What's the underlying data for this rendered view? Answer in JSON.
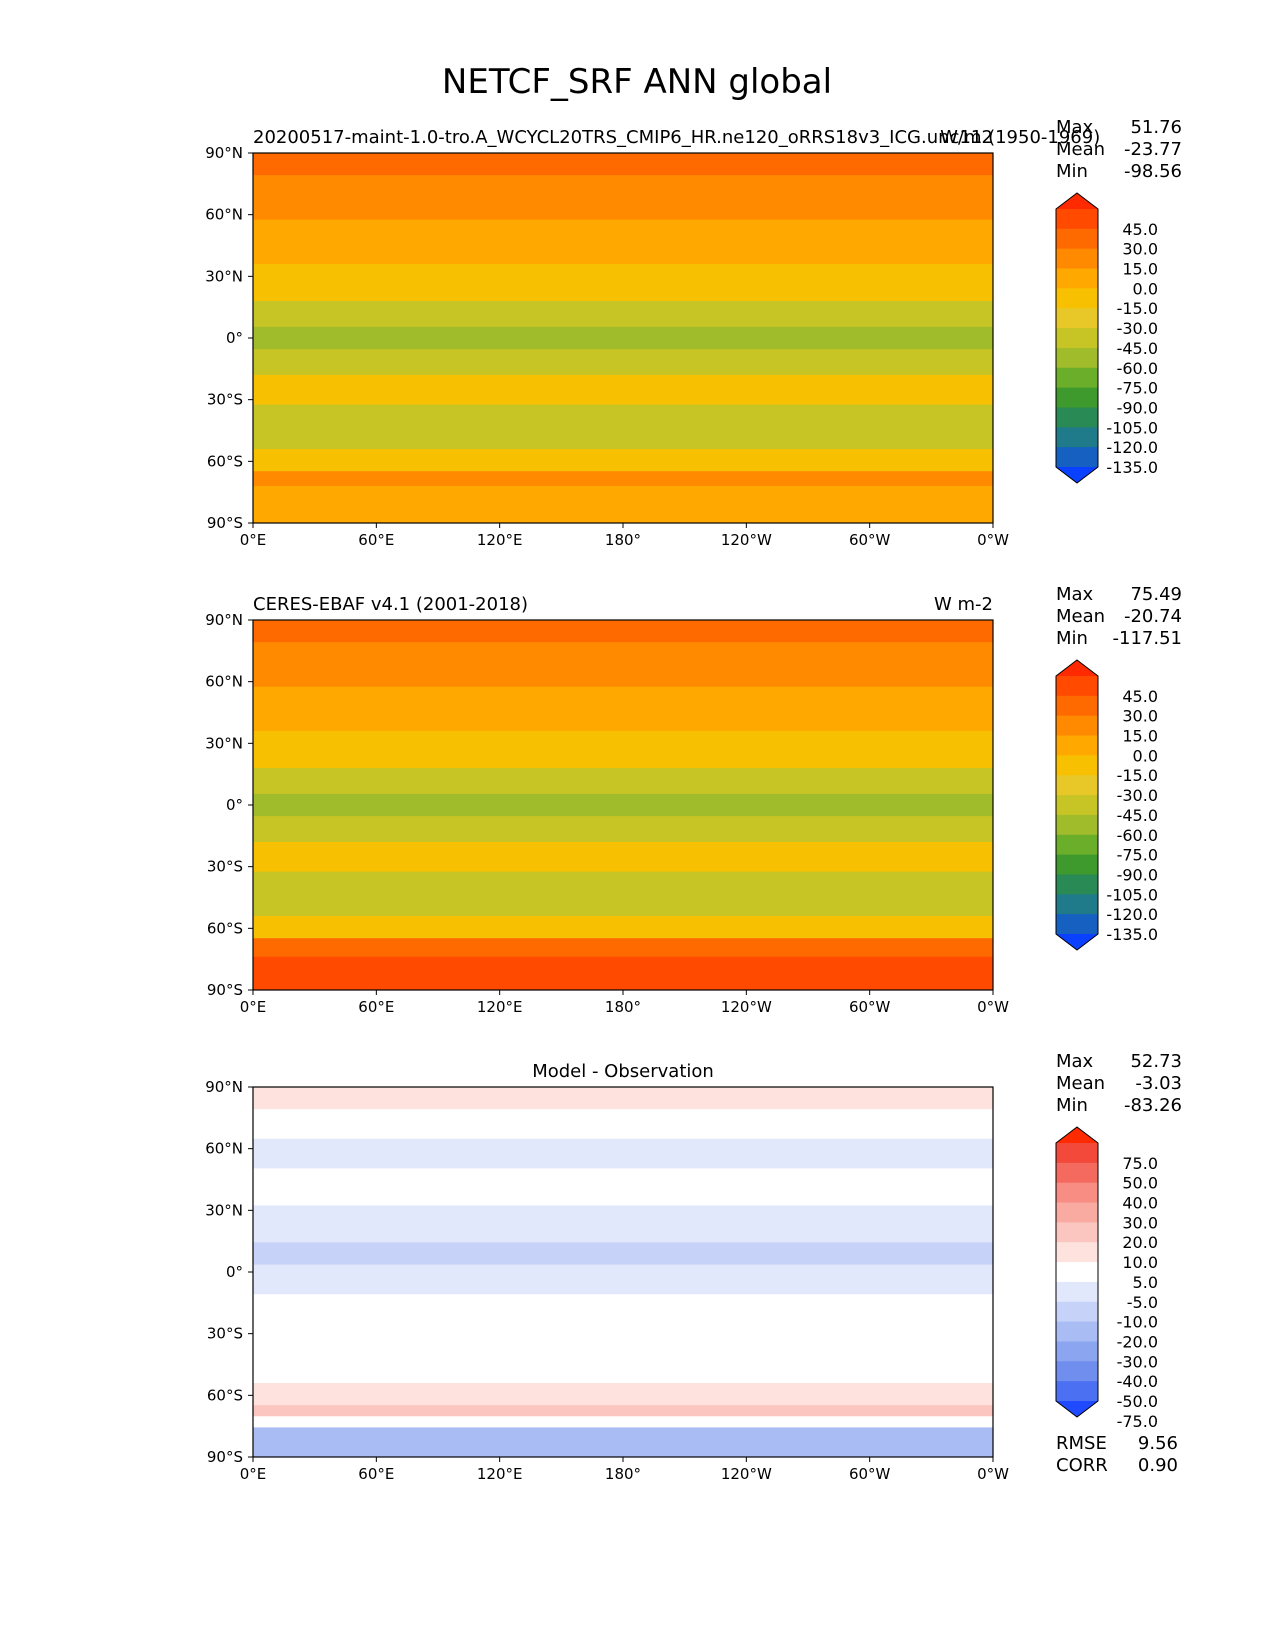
{
  "figure_title": "NETCF_SRF ANN global",
  "chart_data": [
    {
      "type": "heatmap",
      "title_left": "20200517-maint-1.0-tro.A_WCYCL20TRS_CMIP6_HR.ne120_oRRS18v3_ICG.unc11 (1950-1969)",
      "title_right": "W/m2",
      "title_center": "",
      "xticks": [
        "0°E",
        "60°E",
        "120°E",
        "180°",
        "120°W",
        "60°W",
        "0°W"
      ],
      "yticks": [
        "90°N",
        "60°N",
        "30°N",
        "0°",
        "30°S",
        "60°S",
        "90°S"
      ],
      "xlim": [
        0,
        360
      ],
      "ylim": [
        -90,
        90
      ],
      "stats": [
        {
          "label": "Max",
          "value": "51.76"
        },
        {
          "label": "Mean",
          "value": "-23.77"
        },
        {
          "label": "Min",
          "value": "-98.56"
        }
      ],
      "colorbar": {
        "labels": [
          "45.0",
          "30.0",
          "15.0",
          "0.0",
          "-15.0",
          "-30.0",
          "-45.0",
          "-60.0",
          "-75.0",
          "-90.0",
          "-105.0",
          "-120.0",
          "-135.0"
        ],
        "colors": [
          "#ff2a00",
          "#ff4a00",
          "#ff6a00",
          "#ff8a00",
          "#ffa900",
          "#f7c000",
          "#e8c829",
          "#c7c426",
          "#a0bc2a",
          "#6aae2a",
          "#3f9a2e",
          "#2a8a55",
          "#1f7a8a",
          "#1560c0",
          "#0a40ff"
        ]
      }
    },
    {
      "type": "heatmap",
      "title_left": "CERES-EBAF v4.1 (2001-2018)",
      "title_right": "W m-2",
      "title_center": "",
      "xticks": [
        "0°E",
        "60°E",
        "120°E",
        "180°",
        "120°W",
        "60°W",
        "0°W"
      ],
      "yticks": [
        "90°N",
        "60°N",
        "30°N",
        "0°",
        "30°S",
        "60°S",
        "90°S"
      ],
      "xlim": [
        0,
        360
      ],
      "ylim": [
        -90,
        90
      ],
      "stats": [
        {
          "label": "Max",
          "value": "75.49"
        },
        {
          "label": "Mean",
          "value": "-20.74"
        },
        {
          "label": "Min",
          "value": "-117.51"
        }
      ],
      "colorbar": {
        "labels": [
          "45.0",
          "30.0",
          "15.0",
          "0.0",
          "-15.0",
          "-30.0",
          "-45.0",
          "-60.0",
          "-75.0",
          "-90.0",
          "-105.0",
          "-120.0",
          "-135.0"
        ],
        "colors": [
          "#ff2a00",
          "#ff4a00",
          "#ff6a00",
          "#ff8a00",
          "#ffa900",
          "#f7c000",
          "#e8c829",
          "#c7c426",
          "#a0bc2a",
          "#6aae2a",
          "#3f9a2e",
          "#2a8a55",
          "#1f7a8a",
          "#1560c0",
          "#0a40ff"
        ]
      }
    },
    {
      "type": "heatmap",
      "title_left": "",
      "title_right": "",
      "title_center": "Model - Observation",
      "xticks": [
        "0°E",
        "60°E",
        "120°E",
        "180°",
        "120°W",
        "60°W",
        "0°W"
      ],
      "yticks": [
        "90°N",
        "60°N",
        "30°N",
        "0°",
        "30°S",
        "60°S",
        "90°S"
      ],
      "xlim": [
        0,
        360
      ],
      "ylim": [
        -90,
        90
      ],
      "stats": [
        {
          "label": "Max",
          "value": "52.73"
        },
        {
          "label": "Mean",
          "value": "-3.03"
        },
        {
          "label": "Min",
          "value": "-83.26"
        }
      ],
      "extra_stats": [
        {
          "label": "RMSE",
          "value": "9.56"
        },
        {
          "label": "CORR",
          "value": "0.90"
        }
      ],
      "colorbar": {
        "labels": [
          "75.0",
          "50.0",
          "40.0",
          "30.0",
          "20.0",
          "10.0",
          "5.0",
          "-5.0",
          "-10.0",
          "-20.0",
          "-30.0",
          "-40.0",
          "-50.0",
          "-75.0"
        ],
        "colors": [
          "#ff2a00",
          "#f2493a",
          "#f46a5e",
          "#f78d83",
          "#f9aaa1",
          "#fbc6bf",
          "#fde2de",
          "#ffffff",
          "#e2e8fb",
          "#c6d2f8",
          "#a9bcf4",
          "#8ca5f1",
          "#6f8eee",
          "#4c70f2",
          "#1f4aff"
        ]
      }
    }
  ]
}
